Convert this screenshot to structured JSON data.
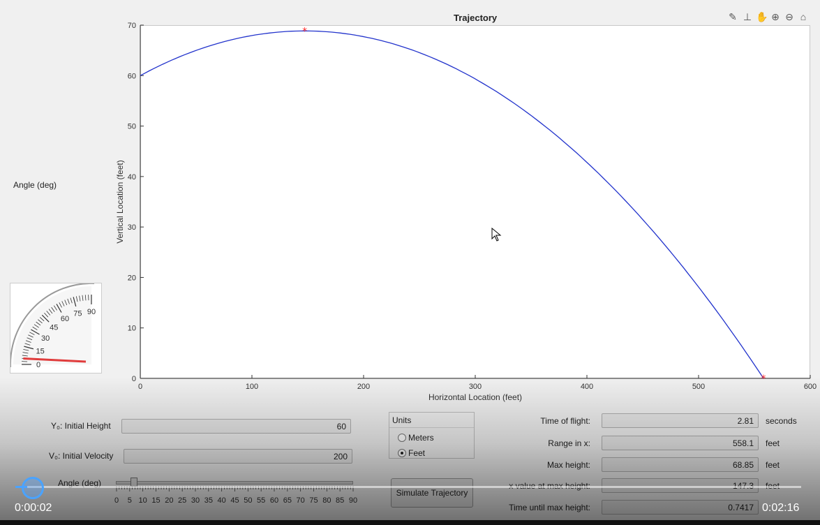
{
  "figure": {
    "title": "Trajectory",
    "toolbar_icons": [
      "brush-icon",
      "datatip-icon",
      "pan-icon",
      "zoom-in-icon",
      "zoom-out-icon",
      "home-icon"
    ]
  },
  "left_panel": {
    "angle_label": "Angle (deg)",
    "gauge": {
      "scale_labels": [
        "90",
        "75",
        "60",
        "45",
        "30",
        "15",
        "0"
      ],
      "needle_value": 5,
      "needle_color": "#e03c3c"
    }
  },
  "chart_data": {
    "type": "line",
    "title": "Trajectory",
    "xlabel": "Horizontal Location (feet)",
    "ylabel": "Vertical Location (feet)",
    "xlim": [
      0,
      600
    ],
    "ylim": [
      0,
      70
    ],
    "xticks": [
      0,
      100,
      200,
      300,
      400,
      500,
      600
    ],
    "yticks": [
      0,
      10,
      20,
      30,
      40,
      50,
      60,
      70
    ],
    "grid": false,
    "series": [
      {
        "color": "#2233cc",
        "x0": 0,
        "y0": 60,
        "xmax": 147.3,
        "ymax": 68.85,
        "xend": 558.1,
        "yend": 0
      }
    ],
    "markers": [
      {
        "x": 147.3,
        "y": 68.85,
        "symbol": "*",
        "color": "#ff2a2a"
      },
      {
        "x": 558.1,
        "y": 0,
        "symbol": "*",
        "color": "#ff2a2a"
      }
    ]
  },
  "inputs": {
    "height_label": "Y₀: Initial Height",
    "height_value": "60",
    "velocity_label": "V₀: Initial Velocity",
    "velocity_value": "200",
    "angle_label": "Angle (deg)",
    "angle_value": 5,
    "angle_ticks": [
      "0",
      "5",
      "10",
      "15",
      "20",
      "25",
      "30",
      "35",
      "40",
      "45",
      "50",
      "55",
      "60",
      "65",
      "70",
      "75",
      "80",
      "85",
      "90"
    ]
  },
  "units": {
    "title": "Units",
    "options": [
      "Meters",
      "Feet"
    ],
    "selected": "Feet"
  },
  "simulate_button": "Simulate Trajectory",
  "results": [
    {
      "label": "Time of flight:",
      "value": "2.81",
      "unit": "seconds"
    },
    {
      "label": "Range in x:",
      "value": "558.1",
      "unit": "feet"
    },
    {
      "label": "Max height:",
      "value": "68.85",
      "unit": "feet"
    },
    {
      "label": "x value at max height:",
      "value": "147.3",
      "unit": "feet"
    },
    {
      "label": "Time until max height:",
      "value": "0.7417",
      "unit": ""
    }
  ],
  "video": {
    "current_time": "0:00:02",
    "total_time": "0:02:16",
    "progress": 0.015
  }
}
